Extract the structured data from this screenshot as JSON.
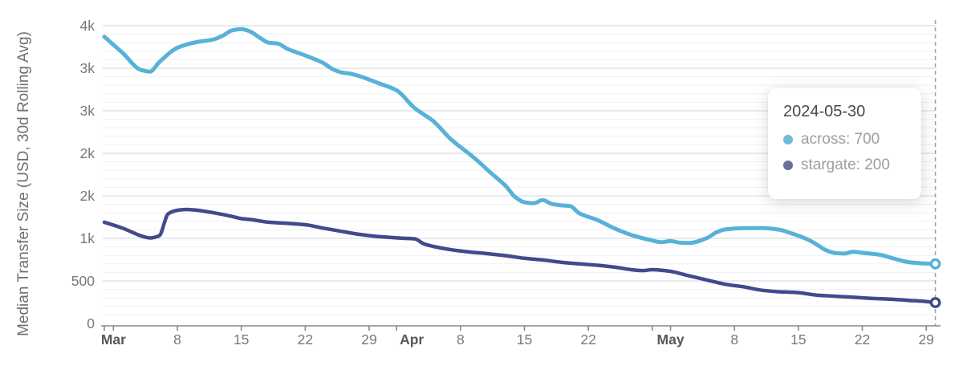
{
  "y_axis_title": "Median Transfer Size (USD, 30d Rolling Avg)",
  "tooltip": {
    "date": "2024-05-30",
    "rows": [
      {
        "name": "across",
        "text": "across: 700",
        "color": "#72b8d7"
      },
      {
        "name": "stargate",
        "text": "stargate: 200",
        "color": "#696e9c"
      }
    ]
  },
  "chart_data": {
    "type": "line",
    "title": "",
    "xlabel": "",
    "ylabel": "Median Transfer Size (USD, 30d Rolling Avg)",
    "x_unit": "days since 2024-02-29",
    "xlim": [
      0,
      91
    ],
    "ylim": [
      0,
      3570
    ],
    "grid": {
      "minor_step": 100,
      "major_step": 500,
      "minor_color": "#eef1f5",
      "major_color": "#dfe4ea"
    },
    "legend_position": "tooltip-overlay",
    "colors": {
      "axis_line": "#85888b",
      "tick_text": "#76797c",
      "month_text": "#55585b",
      "crosshair": "#a0a4a8"
    },
    "y_ticks": [
      {
        "value": 0,
        "label": "0"
      },
      {
        "value": 500,
        "label": "500"
      },
      {
        "value": 1000,
        "label": "1k"
      },
      {
        "value": 1500,
        "label": "2k"
      },
      {
        "value": 2000,
        "label": "2k"
      },
      {
        "value": 2500,
        "label": "3k"
      },
      {
        "value": 3000,
        "label": "3k"
      },
      {
        "value": 3500,
        "label": "4k"
      }
    ],
    "x_ticks": [
      {
        "day": 0,
        "label": "",
        "bold": false,
        "dx": 0
      },
      {
        "day": 1,
        "label": "Mar",
        "bold": true,
        "dx": 0
      },
      {
        "day": 8,
        "label": "8",
        "bold": false,
        "dx": 0
      },
      {
        "day": 15,
        "label": "15",
        "bold": false,
        "dx": 0
      },
      {
        "day": 22,
        "label": "22",
        "bold": false,
        "dx": 0
      },
      {
        "day": 29,
        "label": "29",
        "bold": false,
        "dx": 0
      },
      {
        "day": 32,
        "label": "Apr",
        "bold": true,
        "dx": 19
      },
      {
        "day": 39,
        "label": "8",
        "bold": false,
        "dx": 0
      },
      {
        "day": 46,
        "label": "15",
        "bold": false,
        "dx": 0
      },
      {
        "day": 53,
        "label": "22",
        "bold": false,
        "dx": 0
      },
      {
        "day": 60,
        "label": "",
        "bold": false,
        "dx": 0
      },
      {
        "day": 62,
        "label": "May",
        "bold": true,
        "dx": 0
      },
      {
        "day": 69,
        "label": "8",
        "bold": false,
        "dx": 0
      },
      {
        "day": 76,
        "label": "15",
        "bold": false,
        "dx": 0
      },
      {
        "day": 83,
        "label": "22",
        "bold": false,
        "dx": 0
      },
      {
        "day": 90,
        "label": "29",
        "bold": false,
        "dx": 0
      }
    ],
    "crosshair": {
      "day": 91,
      "date": "2024-05-30"
    },
    "series": [
      {
        "name": "across",
        "color": "#58b2d8",
        "line_width": 5,
        "end_value_shown": 700,
        "points": [
          [
            0,
            3370
          ],
          [
            2,
            3180
          ],
          [
            4,
            2980
          ],
          [
            5,
            2960
          ],
          [
            6,
            3070
          ],
          [
            8,
            3240
          ],
          [
            10,
            3305
          ],
          [
            12,
            3340
          ],
          [
            13,
            3385
          ],
          [
            14,
            3445
          ],
          [
            15,
            3460
          ],
          [
            16,
            3430
          ],
          [
            17,
            3360
          ],
          [
            18,
            3300
          ],
          [
            19,
            3290
          ],
          [
            20,
            3230
          ],
          [
            22,
            3150
          ],
          [
            24,
            3060
          ],
          [
            25,
            2990
          ],
          [
            26,
            2950
          ],
          [
            27,
            2935
          ],
          [
            28,
            2905
          ],
          [
            30,
            2825
          ],
          [
            32,
            2740
          ],
          [
            34,
            2530
          ],
          [
            35,
            2455
          ],
          [
            36,
            2380
          ],
          [
            38,
            2160
          ],
          [
            40,
            1990
          ],
          [
            41,
            1900
          ],
          [
            42,
            1800
          ],
          [
            44,
            1610
          ],
          [
            45,
            1485
          ],
          [
            46,
            1425
          ],
          [
            47,
            1412
          ],
          [
            48,
            1450
          ],
          [
            49,
            1405
          ],
          [
            50,
            1388
          ],
          [
            51,
            1380
          ],
          [
            52,
            1295
          ],
          [
            54,
            1215
          ],
          [
            56,
            1110
          ],
          [
            58,
            1030
          ],
          [
            60,
            975
          ],
          [
            61,
            955
          ],
          [
            62,
            968
          ],
          [
            63,
            950
          ],
          [
            64,
            945
          ],
          [
            66,
            1005
          ],
          [
            67,
            1070
          ],
          [
            68,
            1105
          ],
          [
            70,
            1120
          ],
          [
            72,
            1122
          ],
          [
            74,
            1100
          ],
          [
            75,
            1068
          ],
          [
            76,
            1030
          ],
          [
            77,
            988
          ],
          [
            78,
            928
          ],
          [
            79,
            862
          ],
          [
            80,
            828
          ],
          [
            81,
            822
          ],
          [
            82,
            842
          ],
          [
            83,
            830
          ],
          [
            84,
            820
          ],
          [
            85,
            806
          ],
          [
            86,
            776
          ],
          [
            87,
            746
          ],
          [
            88,
            722
          ],
          [
            89,
            710
          ],
          [
            90,
            704
          ],
          [
            91,
            700
          ]
        ]
      },
      {
        "name": "stargate",
        "color": "#424a8c",
        "line_width": 4.5,
        "end_value_shown": 200,
        "points": [
          [
            0,
            1190
          ],
          [
            2,
            1120
          ],
          [
            3,
            1075
          ],
          [
            4,
            1030
          ],
          [
            5,
            1005
          ],
          [
            6,
            1030
          ],
          [
            7,
            1290
          ],
          [
            8,
            1330
          ],
          [
            9,
            1340
          ],
          [
            10,
            1332
          ],
          [
            12,
            1300
          ],
          [
            14,
            1258
          ],
          [
            15,
            1232
          ],
          [
            16,
            1222
          ],
          [
            18,
            1190
          ],
          [
            20,
            1176
          ],
          [
            22,
            1160
          ],
          [
            24,
            1120
          ],
          [
            26,
            1082
          ],
          [
            28,
            1046
          ],
          [
            30,
            1022
          ],
          [
            32,
            1006
          ],
          [
            33,
            1000
          ],
          [
            34,
            994
          ],
          [
            35,
            935
          ],
          [
            36,
            906
          ],
          [
            38,
            866
          ],
          [
            40,
            840
          ],
          [
            42,
            820
          ],
          [
            44,
            796
          ],
          [
            46,
            766
          ],
          [
            48,
            746
          ],
          [
            50,
            720
          ],
          [
            52,
            700
          ],
          [
            54,
            684
          ],
          [
            56,
            660
          ],
          [
            58,
            628
          ],
          [
            59,
            622
          ],
          [
            60,
            632
          ],
          [
            62,
            612
          ],
          [
            64,
            560
          ],
          [
            66,
            510
          ],
          [
            68,
            460
          ],
          [
            70,
            430
          ],
          [
            72,
            390
          ],
          [
            74,
            372
          ],
          [
            75,
            368
          ],
          [
            76,
            362
          ],
          [
            78,
            333
          ],
          [
            80,
            320
          ],
          [
            82,
            308
          ],
          [
            84,
            294
          ],
          [
            86,
            286
          ],
          [
            88,
            272
          ],
          [
            90,
            258
          ],
          [
            91,
            245
          ]
        ]
      }
    ]
  }
}
